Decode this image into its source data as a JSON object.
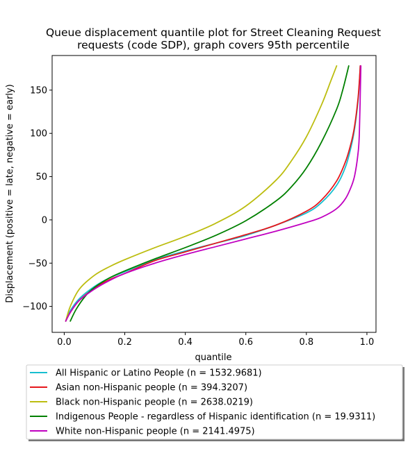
{
  "chart_data": {
    "type": "line",
    "title": "Queue displacement quantile plot for Street Cleaning Request requests (code SDP), graph covers 95th percentile",
    "title_lines": [
      "Queue displacement quantile plot for Street Cleaning Request",
      "requests (code SDP), graph covers 95th percentile"
    ],
    "xlabel": "quantile",
    "ylabel": "Displacement (positive = late, negative = early)",
    "xlim": [
      -0.04,
      1.03
    ],
    "ylim": [
      -130,
      190
    ],
    "xticks": [
      0.0,
      0.2,
      0.4,
      0.6,
      0.8,
      1.0
    ],
    "xtick_labels": [
      "0.0",
      "0.2",
      "0.4",
      "0.6",
      "0.8",
      "1.0"
    ],
    "yticks": [
      -100,
      -50,
      0,
      50,
      100,
      150
    ],
    "ytick_labels": [
      "−100",
      "−50",
      "0",
      "50",
      "100",
      "150"
    ],
    "grid": false,
    "legend_position": "below plot",
    "series": [
      {
        "name": "All Hispanic or Latino People (n = 1532.9681)",
        "color": "#17becf",
        "x": [
          0.005,
          0.02,
          0.05,
          0.1,
          0.15,
          0.2,
          0.3,
          0.4,
          0.5,
          0.6,
          0.7,
          0.8,
          0.85,
          0.9,
          0.93,
          0.95,
          0.96,
          0.97,
          0.975,
          0.978
        ],
        "y": [
          -117,
          -105,
          -91,
          -77,
          -67,
          -60,
          -46,
          -36,
          -27,
          -18,
          -6,
          8,
          20,
          40,
          62,
          88,
          107,
          135,
          158,
          178
        ]
      },
      {
        "name": "Asian non-Hispanic people (n = 394.3207)",
        "color": "#e6161b",
        "x": [
          0.005,
          0.02,
          0.05,
          0.1,
          0.15,
          0.2,
          0.3,
          0.4,
          0.5,
          0.6,
          0.7,
          0.8,
          0.85,
          0.9,
          0.93,
          0.95,
          0.96,
          0.97,
          0.975,
          0.978
        ],
        "y": [
          -117,
          -107,
          -93,
          -79,
          -69,
          -62,
          -47,
          -37,
          -27,
          -17,
          -6,
          10,
          23,
          45,
          68,
          92,
          110,
          138,
          160,
          178
        ]
      },
      {
        "name": "Black non-Hispanic people (n = 2638.0219)",
        "color": "#bcbd0f",
        "x": [
          0.005,
          0.02,
          0.05,
          0.1,
          0.15,
          0.2,
          0.3,
          0.4,
          0.5,
          0.6,
          0.7,
          0.75,
          0.8,
          0.85,
          0.88,
          0.9
        ],
        "y": [
          -117,
          -100,
          -80,
          -64,
          -54,
          -46,
          -32,
          -19,
          -4,
          16,
          46,
          68,
          96,
          133,
          160,
          178
        ]
      },
      {
        "name": "Indigenous People - regardless of Hispanic identification (n = 19.9311)",
        "color": "#008000",
        "x": [
          0.02,
          0.04,
          0.07,
          0.1,
          0.15,
          0.2,
          0.3,
          0.4,
          0.5,
          0.6,
          0.7,
          0.75,
          0.8,
          0.85,
          0.9,
          0.92,
          0.94
        ],
        "y": [
          -117,
          -103,
          -88,
          -78,
          -67,
          -59,
          -45,
          -32,
          -18,
          -1,
          22,
          38,
          60,
          90,
          128,
          150,
          178
        ]
      },
      {
        "name": "White non-Hispanic people (n = 2141.4975)",
        "color": "#c000c0",
        "x": [
          0.005,
          0.02,
          0.05,
          0.1,
          0.15,
          0.2,
          0.3,
          0.4,
          0.5,
          0.6,
          0.7,
          0.8,
          0.85,
          0.9,
          0.93,
          0.95,
          0.96,
          0.97,
          0.975,
          0.98
        ],
        "y": [
          -117,
          -107,
          -93,
          -80,
          -70,
          -62,
          -50,
          -40,
          -31,
          -22,
          -13,
          -3,
          3,
          13,
          25,
          40,
          52,
          75,
          100,
          178
        ]
      }
    ]
  }
}
